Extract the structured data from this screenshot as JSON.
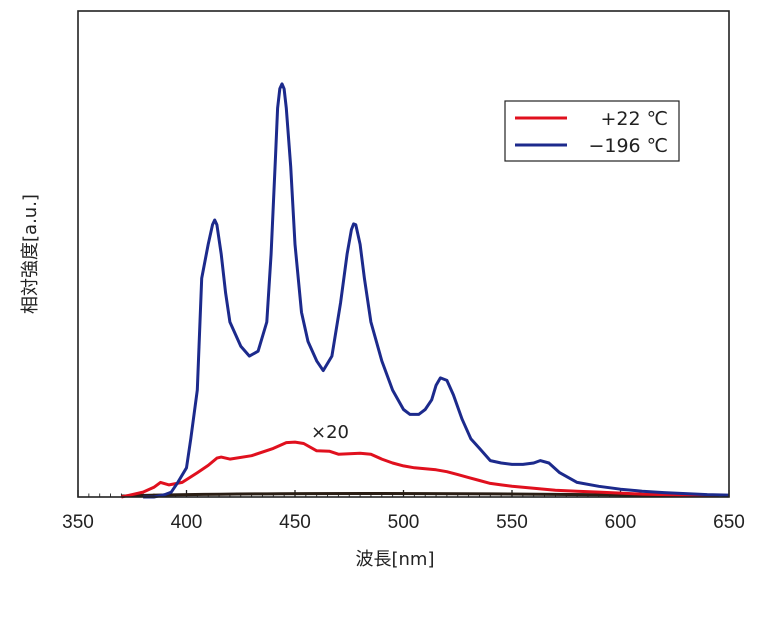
{
  "chart_data": {
    "type": "line",
    "xlabel": "波長[nm]",
    "ylabel": "相対強度[a.u.]",
    "xlim": [
      350,
      650
    ],
    "ylim": [
      0,
      1.0
    ],
    "xticks": [
      350,
      400,
      450,
      500,
      550,
      600,
      650
    ],
    "legend_position": "top-right",
    "annotation": {
      "text": "×20",
      "x": 466,
      "y": 0.22
    },
    "series": [
      {
        "name": "+22 ℃",
        "color": "#e0101e",
        "x": [
          370,
          380,
          385,
          388,
          392,
          398,
          405,
          410,
          414,
          416,
          420,
          430,
          440,
          446,
          450,
          454,
          460,
          466,
          470,
          480,
          485,
          490,
          495,
          500,
          505,
          510,
          515,
          520,
          525,
          530,
          535,
          540,
          545,
          550,
          560,
          570,
          580,
          590,
          600,
          610,
          620,
          630,
          640,
          645
        ],
        "y": [
          0.0,
          0.01,
          0.02,
          0.03,
          0.025,
          0.03,
          0.05,
          0.065,
          0.08,
          0.082,
          0.078,
          0.085,
          0.1,
          0.112,
          0.113,
          0.11,
          0.095,
          0.094,
          0.088,
          0.09,
          0.088,
          0.078,
          0.07,
          0.064,
          0.06,
          0.058,
          0.056,
          0.052,
          0.046,
          0.04,
          0.034,
          0.028,
          0.025,
          0.022,
          0.018,
          0.014,
          0.012,
          0.01,
          0.008,
          0.006,
          0.005,
          0.004,
          0.003,
          0.003
        ]
      },
      {
        "name": "−196 ℃",
        "color": "#1c2a8c",
        "x": [
          380,
          385,
          390,
          393,
          396,
          400,
          402,
          405,
          407,
          410,
          412,
          413,
          414,
          416,
          418,
          420,
          425,
          429,
          433,
          437,
          439,
          441,
          442,
          443,
          444,
          445,
          446,
          448,
          450,
          453,
          456,
          460,
          463,
          467,
          471,
          474,
          476,
          477,
          478,
          480,
          482,
          485,
          490,
          495,
          500,
          503,
          507,
          510,
          513,
          515,
          517,
          520,
          523,
          527,
          531,
          535,
          540,
          545,
          550,
          555,
          560,
          563,
          567,
          572,
          580,
          590,
          600,
          610,
          620,
          630,
          640,
          650
        ],
        "y": [
          0.0,
          0.0,
          0.005,
          0.01,
          0.03,
          0.06,
          0.12,
          0.22,
          0.45,
          0.52,
          0.56,
          0.57,
          0.56,
          0.5,
          0.42,
          0.36,
          0.31,
          0.29,
          0.3,
          0.36,
          0.5,
          0.7,
          0.8,
          0.84,
          0.85,
          0.84,
          0.8,
          0.68,
          0.52,
          0.38,
          0.32,
          0.28,
          0.26,
          0.29,
          0.4,
          0.5,
          0.55,
          0.562,
          0.56,
          0.52,
          0.45,
          0.36,
          0.28,
          0.22,
          0.18,
          0.17,
          0.17,
          0.18,
          0.2,
          0.23,
          0.245,
          0.24,
          0.21,
          0.16,
          0.12,
          0.1,
          0.075,
          0.07,
          0.067,
          0.067,
          0.07,
          0.075,
          0.07,
          0.05,
          0.03,
          0.022,
          0.016,
          0.012,
          0.009,
          0.007,
          0.005,
          0.004
        ]
      }
    ]
  }
}
